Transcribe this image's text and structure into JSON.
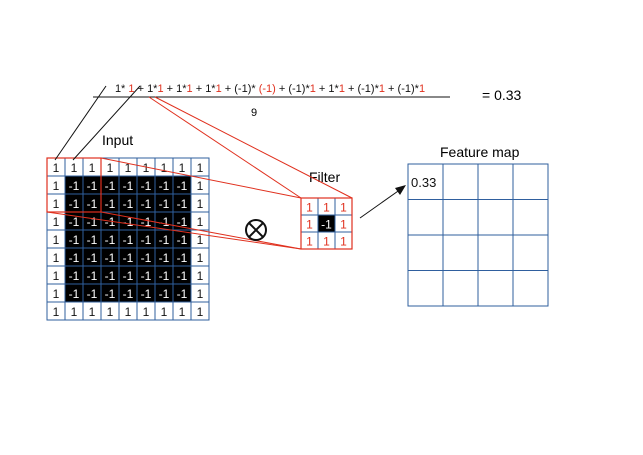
{
  "formula": {
    "numerator_parts": [
      {
        "t": "1*",
        "c": "#111"
      },
      {
        "t": " 1",
        "c": "#e0301e"
      },
      {
        "t": " + 1*",
        "c": "#111"
      },
      {
        "t": "1",
        "c": "#e0301e"
      },
      {
        "t": " + 1*",
        "c": "#111"
      },
      {
        "t": "1",
        "c": "#e0301e"
      },
      {
        "t": " + 1*",
        "c": "#111"
      },
      {
        "t": "1",
        "c": "#e0301e"
      },
      {
        "t": " + (-1)* ",
        "c": "#111"
      },
      {
        "t": "(-1)",
        "c": "#e0301e"
      },
      {
        "t": " + (-1)*",
        "c": "#111"
      },
      {
        "t": "1",
        "c": "#e0301e"
      },
      {
        "t": " + 1*",
        "c": "#111"
      },
      {
        "t": "1",
        "c": "#e0301e"
      },
      {
        "t": " + (-1)*",
        "c": "#111"
      },
      {
        "t": "1",
        "c": "#e0301e"
      },
      {
        "t": " + (-1)*",
        "c": "#111"
      },
      {
        "t": "1",
        "c": "#e0301e"
      }
    ],
    "denominator": "9",
    "result": "= 0.33"
  },
  "input": {
    "label": "Input",
    "grid": [
      [
        "1",
        "1",
        "1",
        "1",
        "1",
        "1",
        "1",
        "1",
        "1"
      ],
      [
        "1",
        "-1",
        "-1",
        "-1",
        "-1",
        "-1",
        "-1",
        "-1",
        "1"
      ],
      [
        "1",
        "-1",
        "-1",
        "-1",
        "-1",
        "-1",
        "-1",
        "-1",
        "1"
      ],
      [
        "1",
        "-1",
        "-1",
        "-1",
        "-1",
        "-1",
        "-1",
        "-1",
        "1"
      ],
      [
        "1",
        "-1",
        "-1",
        "-1",
        "-1",
        "-1",
        "-1",
        "-1",
        "1"
      ],
      [
        "1",
        "-1",
        "-1",
        "-1",
        "-1",
        "-1",
        "-1",
        "-1",
        "1"
      ],
      [
        "1",
        "-1",
        "-1",
        "-1",
        "-1",
        "-1",
        "-1",
        "-1",
        "1"
      ],
      [
        "1",
        "-1",
        "-1",
        "-1",
        "-1",
        "-1",
        "-1",
        "-1",
        "1"
      ],
      [
        "1",
        "1",
        "1",
        "1",
        "1",
        "1",
        "1",
        "1",
        "1"
      ]
    ]
  },
  "filter": {
    "label": "Filter",
    "grid": [
      [
        "1",
        "1",
        "1"
      ],
      [
        "1",
        "-1",
        "1"
      ],
      [
        "1",
        "1",
        "1"
      ]
    ]
  },
  "feature_map": {
    "label": "Feature map",
    "grid": [
      [
        "0.33",
        "",
        "",
        ""
      ],
      [
        "",
        "",
        "",
        ""
      ],
      [
        "",
        "",
        "",
        ""
      ],
      [
        "",
        "",
        "",
        ""
      ]
    ]
  },
  "colors": {
    "grid_border": "#2f5f9e",
    "highlight": "#e0301e",
    "dark_cell": "#000000",
    "text": "#111111"
  },
  "operator_icon": "circled-times-icon"
}
